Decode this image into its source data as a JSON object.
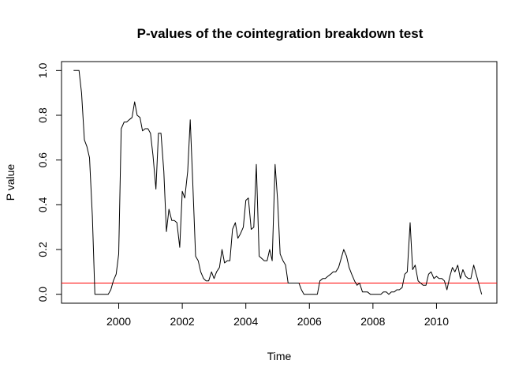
{
  "chart_data": {
    "type": "line",
    "title": "P-values of the cointegration breakdown test",
    "xlabel": "Time",
    "ylabel": "P value",
    "xlim": [
      1998.2,
      2011.9
    ],
    "ylim": [
      -0.04,
      1.04
    ],
    "x_ticks": [
      2000,
      2002,
      2004,
      2006,
      2008,
      2010
    ],
    "x_tick_labels": [
      "2000",
      "2002",
      "2004",
      "2006",
      "2008",
      "2010"
    ],
    "y_ticks": [
      0.0,
      0.2,
      0.4,
      0.6,
      0.8,
      1.0
    ],
    "y_tick_labels": [
      "0.0",
      "0.2",
      "0.4",
      "0.6",
      "0.8",
      "1.0"
    ],
    "grid": false,
    "reference_line": {
      "y": 0.05,
      "color": "#ff0000"
    },
    "series": [
      {
        "color": "#000000",
        "x": [
          1998.58,
          1998.75,
          1998.83,
          1998.92,
          1999.0,
          1999.08,
          1999.17,
          1999.25,
          1999.33,
          1999.42,
          1999.5,
          1999.58,
          1999.67,
          1999.75,
          1999.83,
          1999.92,
          2000.0,
          2000.08,
          2000.17,
          2000.25,
          2000.33,
          2000.42,
          2000.5,
          2000.58,
          2000.67,
          2000.75,
          2000.83,
          2000.92,
          2001.0,
          2001.08,
          2001.17,
          2001.25,
          2001.33,
          2001.42,
          2001.5,
          2001.58,
          2001.67,
          2001.75,
          2001.83,
          2001.92,
          2002.0,
          2002.08,
          2002.17,
          2002.25,
          2002.33,
          2002.42,
          2002.5,
          2002.58,
          2002.67,
          2002.75,
          2002.83,
          2002.92,
          2003.0,
          2003.08,
          2003.17,
          2003.25,
          2003.33,
          2003.42,
          2003.5,
          2003.58,
          2003.67,
          2003.75,
          2003.83,
          2003.92,
          2004.0,
          2004.08,
          2004.17,
          2004.25,
          2004.33,
          2004.42,
          2004.5,
          2004.58,
          2004.67,
          2004.75,
          2004.83,
          2004.92,
          2005.0,
          2005.08,
          2005.17,
          2005.25,
          2005.33,
          2005.42,
          2005.5,
          2005.58,
          2005.67,
          2005.75,
          2005.83,
          2005.92,
          2006.0,
          2006.08,
          2006.17,
          2006.25,
          2006.33,
          2006.42,
          2006.5,
          2006.58,
          2006.67,
          2006.75,
          2006.83,
          2006.92,
          2007.0,
          2007.08,
          2007.17,
          2007.25,
          2007.33,
          2007.42,
          2007.5,
          2007.58,
          2007.67,
          2007.75,
          2007.83,
          2007.92,
          2008.0,
          2008.08,
          2008.17,
          2008.25,
          2008.33,
          2008.42,
          2008.5,
          2008.58,
          2008.67,
          2008.75,
          2008.83,
          2008.92,
          2009.0,
          2009.08,
          2009.17,
          2009.25,
          2009.33,
          2009.42,
          2009.5,
          2009.58,
          2009.67,
          2009.75,
          2009.83,
          2009.92,
          2010.0,
          2010.08,
          2010.17,
          2010.25,
          2010.33,
          2010.42,
          2010.5,
          2010.58,
          2010.67,
          2010.75,
          2010.83,
          2010.92,
          2011.0,
          2011.08,
          2011.17,
          2011.42
        ],
        "values": [
          1.0,
          1.0,
          0.9,
          0.69,
          0.66,
          0.61,
          0.35,
          0.0,
          0.0,
          0.0,
          0.0,
          0.0,
          0.0,
          0.02,
          0.06,
          0.09,
          0.18,
          0.74,
          0.77,
          0.77,
          0.78,
          0.79,
          0.86,
          0.8,
          0.79,
          0.73,
          0.74,
          0.74,
          0.72,
          0.62,
          0.47,
          0.72,
          0.72,
          0.55,
          0.28,
          0.38,
          0.33,
          0.33,
          0.32,
          0.21,
          0.46,
          0.43,
          0.55,
          0.78,
          0.5,
          0.17,
          0.15,
          0.1,
          0.07,
          0.06,
          0.06,
          0.1,
          0.07,
          0.1,
          0.12,
          0.2,
          0.14,
          0.15,
          0.15,
          0.29,
          0.32,
          0.25,
          0.27,
          0.3,
          0.42,
          0.43,
          0.29,
          0.3,
          0.58,
          0.17,
          0.16,
          0.15,
          0.15,
          0.2,
          0.15,
          0.58,
          0.42,
          0.18,
          0.15,
          0.13,
          0.05,
          0.05,
          0.05,
          0.05,
          0.05,
          0.02,
          0.0,
          0.0,
          0.0,
          0.0,
          0.0,
          0.0,
          0.06,
          0.07,
          0.07,
          0.08,
          0.09,
          0.1,
          0.1,
          0.12,
          0.16,
          0.2,
          0.17,
          0.12,
          0.09,
          0.06,
          0.04,
          0.05,
          0.01,
          0.01,
          0.01,
          0.0,
          0.0,
          0.0,
          0.0,
          0.0,
          0.01,
          0.01,
          0.0,
          0.01,
          0.01,
          0.02,
          0.02,
          0.03,
          0.09,
          0.1,
          0.32,
          0.11,
          0.13,
          0.06,
          0.05,
          0.04,
          0.04,
          0.09,
          0.1,
          0.07,
          0.08,
          0.07,
          0.07,
          0.06,
          0.02,
          0.08,
          0.12,
          0.1,
          0.13,
          0.07,
          0.11,
          0.08,
          0.07,
          0.07,
          0.13,
          0.0
        ]
      }
    ]
  }
}
